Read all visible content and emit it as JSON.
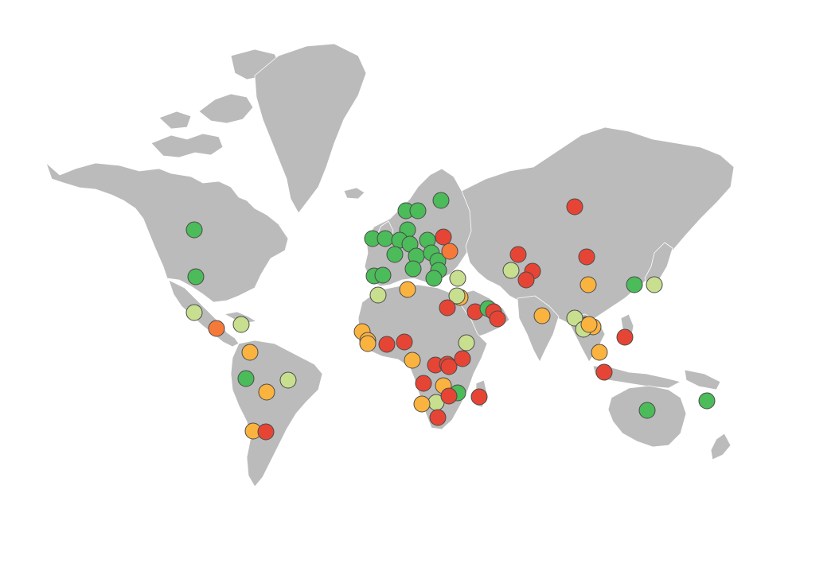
{
  "map": {
    "land_color": "#bbbbbb",
    "marker_colors": {
      "green": "#4cbb5a",
      "lightgreen": "#c8df90",
      "yellow": "#fbb340",
      "orange": "#f57a3a",
      "red": "#e64535"
    },
    "markers": [
      {
        "c": "green"
      },
      {
        "c": "green"
      },
      {
        "c": "lightgreen"
      },
      {
        "c": "orange"
      },
      {
        "c": "lightgreen"
      },
      {
        "c": "yellow"
      },
      {
        "c": "green"
      },
      {
        "c": "yellow"
      },
      {
        "c": "lightgreen"
      },
      {
        "c": "yellow"
      },
      {
        "c": "red"
      },
      {
        "c": "green"
      },
      {
        "c": "green"
      },
      {
        "c": "green"
      },
      {
        "c": "green"
      },
      {
        "c": "green"
      },
      {
        "c": "green"
      },
      {
        "c": "green"
      },
      {
        "c": "green"
      },
      {
        "c": "green"
      },
      {
        "c": "green"
      },
      {
        "c": "green"
      },
      {
        "c": "green"
      },
      {
        "c": "green"
      },
      {
        "c": "green"
      },
      {
        "c": "green"
      },
      {
        "c": "green"
      },
      {
        "c": "green"
      },
      {
        "c": "green"
      },
      {
        "c": "red"
      },
      {
        "c": "orange"
      },
      {
        "c": "lightgreen"
      },
      {
        "c": "yellow"
      },
      {
        "c": "lightgreen"
      },
      {
        "c": "yellow"
      },
      {
        "c": "lightgreen"
      },
      {
        "c": "red"
      },
      {
        "c": "red"
      },
      {
        "c": "green"
      },
      {
        "c": "red"
      },
      {
        "c": "red"
      },
      {
        "c": "yellow"
      },
      {
        "c": "yellow"
      },
      {
        "c": "yellow"
      },
      {
        "c": "red"
      },
      {
        "c": "red"
      },
      {
        "c": "yellow"
      },
      {
        "c": "lightgreen"
      },
      {
        "c": "red"
      },
      {
        "c": "red"
      },
      {
        "c": "red"
      },
      {
        "c": "red"
      },
      {
        "c": "yellow"
      },
      {
        "c": "lightgreen"
      },
      {
        "c": "yellow"
      },
      {
        "c": "green"
      },
      {
        "c": "red"
      },
      {
        "c": "red"
      },
      {
        "c": "red"
      },
      {
        "c": "red"
      },
      {
        "c": "red"
      },
      {
        "c": "red"
      },
      {
        "c": "lightgreen"
      },
      {
        "c": "red"
      },
      {
        "c": "red"
      },
      {
        "c": "yellow"
      },
      {
        "c": "red"
      },
      {
        "c": "yellow"
      },
      {
        "c": "green"
      },
      {
        "c": "lightgreen"
      },
      {
        "c": "yellow"
      },
      {
        "c": "lightgreen"
      },
      {
        "c": "yellow"
      },
      {
        "c": "yellow"
      },
      {
        "c": "lightgreen"
      },
      {
        "c": "yellow"
      },
      {
        "c": "red"
      },
      {
        "c": "red"
      },
      {
        "c": "green"
      },
      {
        "c": "green"
      }
    ]
  }
}
